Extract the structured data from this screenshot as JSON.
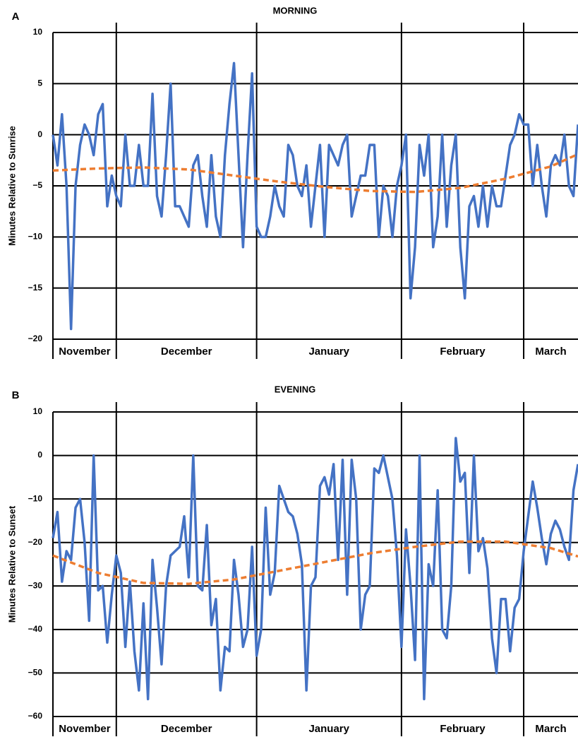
{
  "chart_data": [
    {
      "type": "line",
      "panel_label": "A",
      "title": "MORNING",
      "y_label": "Minutes Relative to Sunrise",
      "month_labels": [
        "November",
        "December",
        "January",
        "February",
        "March"
      ],
      "xlim": [
        0,
        116
      ],
      "xticks": [
        14,
        45,
        77,
        104
      ],
      "ylim": [
        -20,
        10
      ],
      "yticks": [
        10,
        5,
        0,
        {
          "value": -5,
          "label": "−5"
        },
        {
          "value": -10,
          "label": "−10"
        },
        {
          "value": -15,
          "label": "−15"
        },
        {
          "value": -20,
          "label": "−20"
        }
      ],
      "grid": true,
      "series": [
        {
          "color": "#4472c4",
          "values": [
            0,
            -3,
            2,
            -5,
            -19,
            -5,
            -1,
            1,
            0,
            -2,
            2,
            3,
            -7,
            -4,
            -6,
            -7,
            0,
            -5,
            -5,
            -1,
            -5,
            -5,
            4,
            -6,
            -8,
            -2,
            5,
            -7,
            -7,
            -8,
            -9,
            -3,
            -2,
            -6,
            -9,
            -2,
            -8,
            -10,
            -2,
            3,
            7,
            -2,
            -11,
            -2,
            6,
            -9,
            -10,
            -10,
            -8,
            -5,
            -7,
            -8,
            -1,
            -2,
            -5,
            -6,
            -3,
            -9,
            -5,
            -1,
            -10,
            -1,
            -2,
            -3,
            -1,
            0,
            -8,
            -6,
            -4,
            -4,
            -1,
            -1,
            -10,
            -5,
            -6,
            -10,
            -5,
            -3,
            0,
            -16,
            -11,
            -1,
            -4,
            0,
            -11,
            -8,
            0,
            -9,
            -3,
            0,
            -11,
            -16,
            -7,
            -6,
            -9,
            -5,
            -9,
            -5,
            -7,
            -7,
            -4,
            -1,
            0,
            2,
            1,
            1,
            -5,
            -1,
            -5,
            -8,
            -3,
            -2,
            -3,
            0,
            -5,
            -6,
            1
          ]
        },
        {
          "color": "#ed7d31",
          "dashed": true,
          "x": [
            0,
            10,
            20,
            30,
            40,
            50,
            60,
            70,
            80,
            90,
            100,
            110,
            116
          ],
          "values": [
            -3.5,
            -3.3,
            -3.2,
            -3.4,
            -4.0,
            -4.6,
            -5.1,
            -5.5,
            -5.6,
            -5.2,
            -4.3,
            -3.1,
            -1.9
          ]
        }
      ]
    },
    {
      "type": "line",
      "panel_label": "B",
      "title": "EVENING",
      "y_label": "Minutes Relative to Sunset",
      "month_labels": [
        "November",
        "December",
        "January",
        "February",
        "March"
      ],
      "xlim": [
        0,
        116
      ],
      "xticks": [
        14,
        45,
        77,
        104
      ],
      "ylim": [
        -60,
        10
      ],
      "yticks": [
        10,
        0,
        {
          "value": -10,
          "label": "−10"
        },
        {
          "value": -20,
          "label": "−20"
        },
        {
          "value": -30,
          "label": "−30"
        },
        {
          "value": -40,
          "label": "−40"
        },
        {
          "value": -50,
          "label": "−50"
        },
        {
          "value": -60,
          "label": "−60"
        }
      ],
      "grid": true,
      "series": [
        {
          "color": "#4472c4",
          "values": [
            -19,
            -13,
            -29,
            -22,
            -24,
            -12,
            -10,
            -20,
            -38,
            0,
            -31,
            -30,
            -43,
            -32,
            -23,
            -27,
            -44,
            -29,
            -45,
            -54,
            -34,
            -56,
            -24,
            -35,
            -48,
            -30,
            -23,
            -22,
            -21,
            -14,
            -28,
            0,
            -30,
            -31,
            -16,
            -39,
            -33,
            -54,
            -44,
            -45,
            -24,
            -32,
            -44,
            -40,
            -21,
            -46,
            -40,
            -12,
            -32,
            -27,
            -7,
            -10,
            -13,
            -14,
            -18,
            -25,
            -54,
            -30,
            -28,
            -7,
            -5,
            -9,
            -2,
            -24,
            -1,
            -32,
            -1,
            -10,
            -40,
            -32,
            -30,
            -3,
            -4,
            0,
            -5,
            -10,
            -23,
            -44,
            -17,
            -30,
            -47,
            0,
            -56,
            -25,
            -30,
            -8,
            -40,
            -42,
            -30,
            4,
            -6,
            -4,
            -27,
            0,
            -22,
            -19,
            -26,
            -42,
            -50,
            -33,
            -33,
            -45,
            -35,
            -33,
            -22,
            -14,
            -6,
            -12,
            -19,
            -25,
            -18,
            -15,
            -17,
            -21,
            -24,
            -8,
            -2
          ]
        },
        {
          "color": "#ed7d31",
          "dashed": true,
          "x": [
            0,
            10,
            20,
            30,
            40,
            50,
            60,
            70,
            80,
            90,
            100,
            110,
            116
          ],
          "values": [
            -23,
            -27,
            -29.3,
            -29.5,
            -28.5,
            -26.5,
            -24.5,
            -22.5,
            -21,
            -19.8,
            -19.8,
            -21.3,
            -23.2
          ]
        }
      ]
    }
  ]
}
